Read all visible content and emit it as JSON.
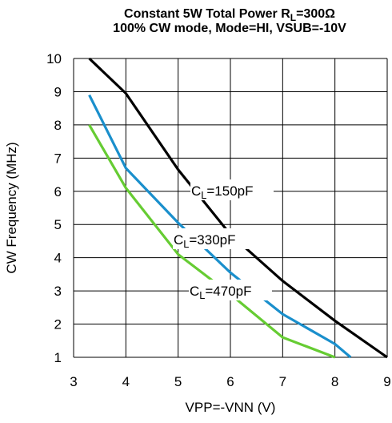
{
  "chart_data": {
    "type": "line",
    "title_lines": [
      {
        "main": "Constant 5W Total Power R",
        "sub": "L",
        "tail": "=300Ω"
      },
      {
        "main": "100% CW mode, Mode=HI, VSUB=-10V",
        "sub": "",
        "tail": ""
      }
    ],
    "xlabel": "VPP=-VNN (V)",
    "ylabel": "CW Frequency (MHz)",
    "xlim": [
      3,
      9
    ],
    "ylim": [
      1,
      10
    ],
    "xticks": [
      3,
      4,
      5,
      6,
      7,
      8,
      9
    ],
    "yticks": [
      1,
      2,
      3,
      4,
      5,
      6,
      7,
      8,
      9,
      10
    ],
    "grid": true,
    "series": [
      {
        "name": "CL=150pF",
        "label_main": "C",
        "label_sub": "L",
        "label_tail": "=150pF",
        "color": "#000000",
        "points": [
          [
            3.3,
            10.0
          ],
          [
            4.0,
            8.95
          ],
          [
            5.0,
            6.65
          ],
          [
            6.0,
            4.7
          ],
          [
            7.0,
            3.3
          ],
          [
            8.0,
            2.1
          ],
          [
            9.0,
            1.0
          ]
        ]
      },
      {
        "name": "CL=330pF",
        "label_main": "C",
        "label_sub": "L",
        "label_tail": "=330pF",
        "color": "#1a8fcc",
        "points": [
          [
            3.3,
            8.9
          ],
          [
            4.0,
            6.7
          ],
          [
            5.0,
            5.05
          ],
          [
            6.0,
            3.55
          ],
          [
            7.0,
            2.3
          ],
          [
            8.0,
            1.4
          ],
          [
            8.3,
            1.0
          ]
        ]
      },
      {
        "name": "CL=470pF",
        "label_main": "C",
        "label_sub": "L",
        "label_tail": "=470pF",
        "color": "#66cc33",
        "points": [
          [
            3.3,
            8.0
          ],
          [
            4.0,
            6.1
          ],
          [
            5.0,
            4.1
          ],
          [
            6.0,
            2.9
          ],
          [
            7.0,
            1.6
          ],
          [
            8.0,
            1.0
          ]
        ]
      }
    ]
  }
}
